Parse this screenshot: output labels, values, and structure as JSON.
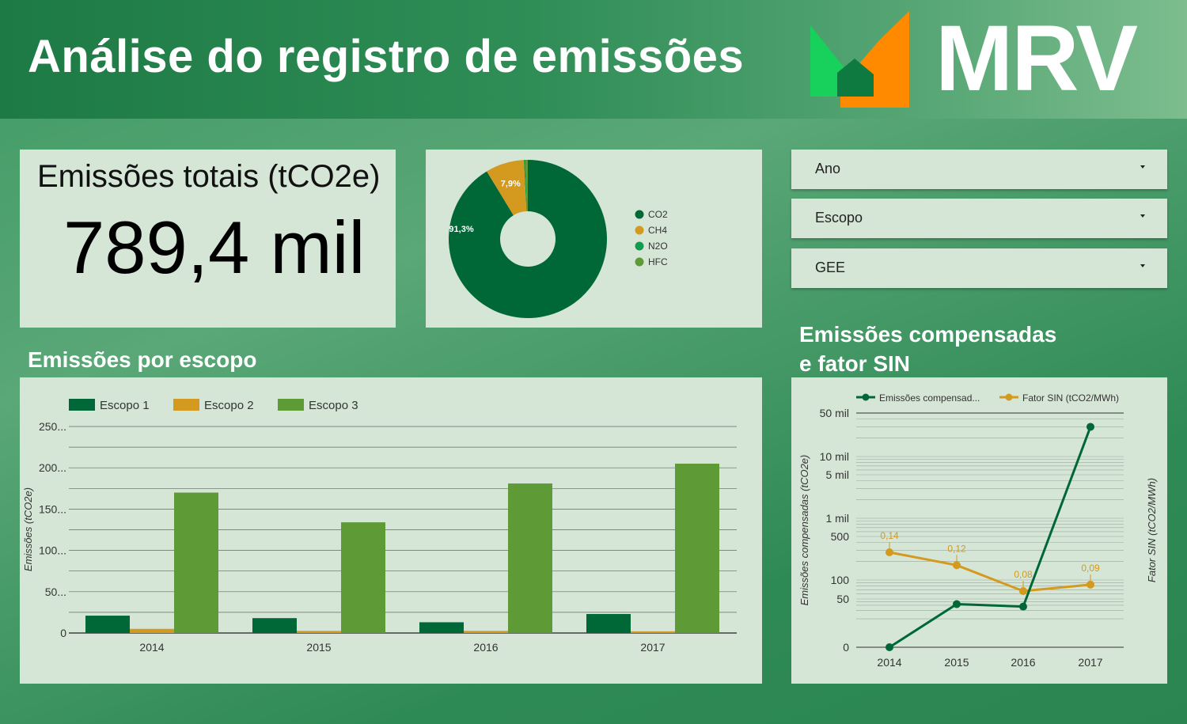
{
  "header": {
    "title": "Análise do registro de emissões",
    "logo_text": "MRV"
  },
  "kpi": {
    "label": "Emissões totais (tCO2e)",
    "value": "789,4 mil"
  },
  "filters": [
    {
      "label": "Ano"
    },
    {
      "label": "Escopo"
    },
    {
      "label": "GEE"
    }
  ],
  "sections": {
    "scope_title": "Emissões por escopo",
    "comp_title_line1": "Emissões compensadas",
    "comp_title_line2": "e fator SIN"
  },
  "colors": {
    "dark_green": "#006837",
    "gold": "#d4991f",
    "med_green": "#129a4e",
    "light_green": "#5e9b37"
  },
  "chart_data": [
    {
      "type": "pie",
      "donut": true,
      "labels": [
        "CO2",
        "CH4",
        "N2O",
        "HFC"
      ],
      "values": [
        91.3,
        7.9,
        0.3,
        0.5
      ],
      "data_labels": [
        "91,3%",
        "7,9%",
        "",
        ""
      ],
      "colors": [
        "#006837",
        "#d4991f",
        "#129a4e",
        "#5e9b37"
      ],
      "legend": "right"
    },
    {
      "type": "bar",
      "categories": [
        "2014",
        "2015",
        "2016",
        "2017"
      ],
      "series": [
        {
          "name": "Escopo 1",
          "values": [
            21,
            18,
            13,
            23
          ],
          "color": "#006837"
        },
        {
          "name": "Escopo 2",
          "values": [
            5,
            2.5,
            2.5,
            2
          ],
          "color": "#d4991f"
        },
        {
          "name": "Escopo 3",
          "values": [
            170,
            134,
            181,
            205
          ],
          "color": "#5e9b37"
        }
      ],
      "ylabel": "Emissões (tCO2e)",
      "yticks": [
        "0",
        "50...",
        "100...",
        "150...",
        "200...",
        "250..."
      ],
      "ylim": [
        0,
        250
      ],
      "legend": "top-left",
      "grid": true
    },
    {
      "type": "line",
      "categories": [
        "2014",
        "2015",
        "2016",
        "2017"
      ],
      "series": [
        {
          "name": "Emissões compensad...",
          "axis": "left",
          "scale": "log",
          "values": [
            1,
            33,
            27,
            30000
          ],
          "color": "#006837"
        },
        {
          "name": "Fator SIN (tCO2/MWh)",
          "axis": "right",
          "values": [
            0.14,
            0.12,
            0.08,
            0.09
          ],
          "data_labels": [
            "0,14",
            "0,12",
            "0,08",
            "0,09"
          ],
          "color": "#d4991f"
        }
      ],
      "ylabel_left": "Emissões compensadas (tCO2e)",
      "ylabel_right": "Fator SIN (tCO2/MWh)",
      "yticks_left": [
        "0",
        "50",
        "100",
        "500",
        "1 mil",
        "5 mil",
        "10 mil",
        "50 mil"
      ],
      "legend": "top",
      "grid": true
    }
  ]
}
